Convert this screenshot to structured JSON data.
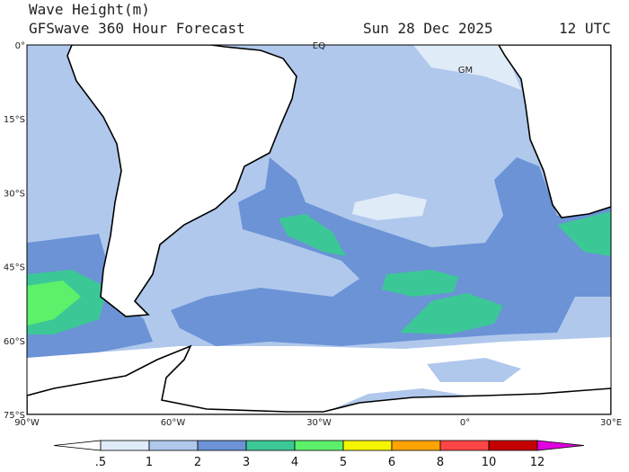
{
  "header": {
    "title": "Wave Height(m)",
    "subtitle": "GFSwave 360 Hour Forecast",
    "date": "Sun 28 Dec 2025",
    "time": "12 UTC"
  },
  "map": {
    "labels": [
      "EQ",
      "GM"
    ],
    "lat_ticks": [
      "0°",
      "15°S",
      "30°S",
      "45°S",
      "60°S",
      "75°S"
    ],
    "lon_ticks": [
      "90°W",
      "60°W",
      "30°W",
      "0°",
      "30°E"
    ]
  },
  "colorbar": {
    "ticks": [
      ".5",
      "1",
      "2",
      "3",
      "4",
      "5",
      "6",
      "8",
      "10",
      "12"
    ],
    "colors": [
      "#ffffff",
      "#e0ebf8",
      "#b0c8ec",
      "#6b93d6",
      "#3cc896",
      "#5df06b",
      "#f5f500",
      "#ffa300",
      "#ff4545",
      "#c40000",
      "#e000e0"
    ]
  }
}
